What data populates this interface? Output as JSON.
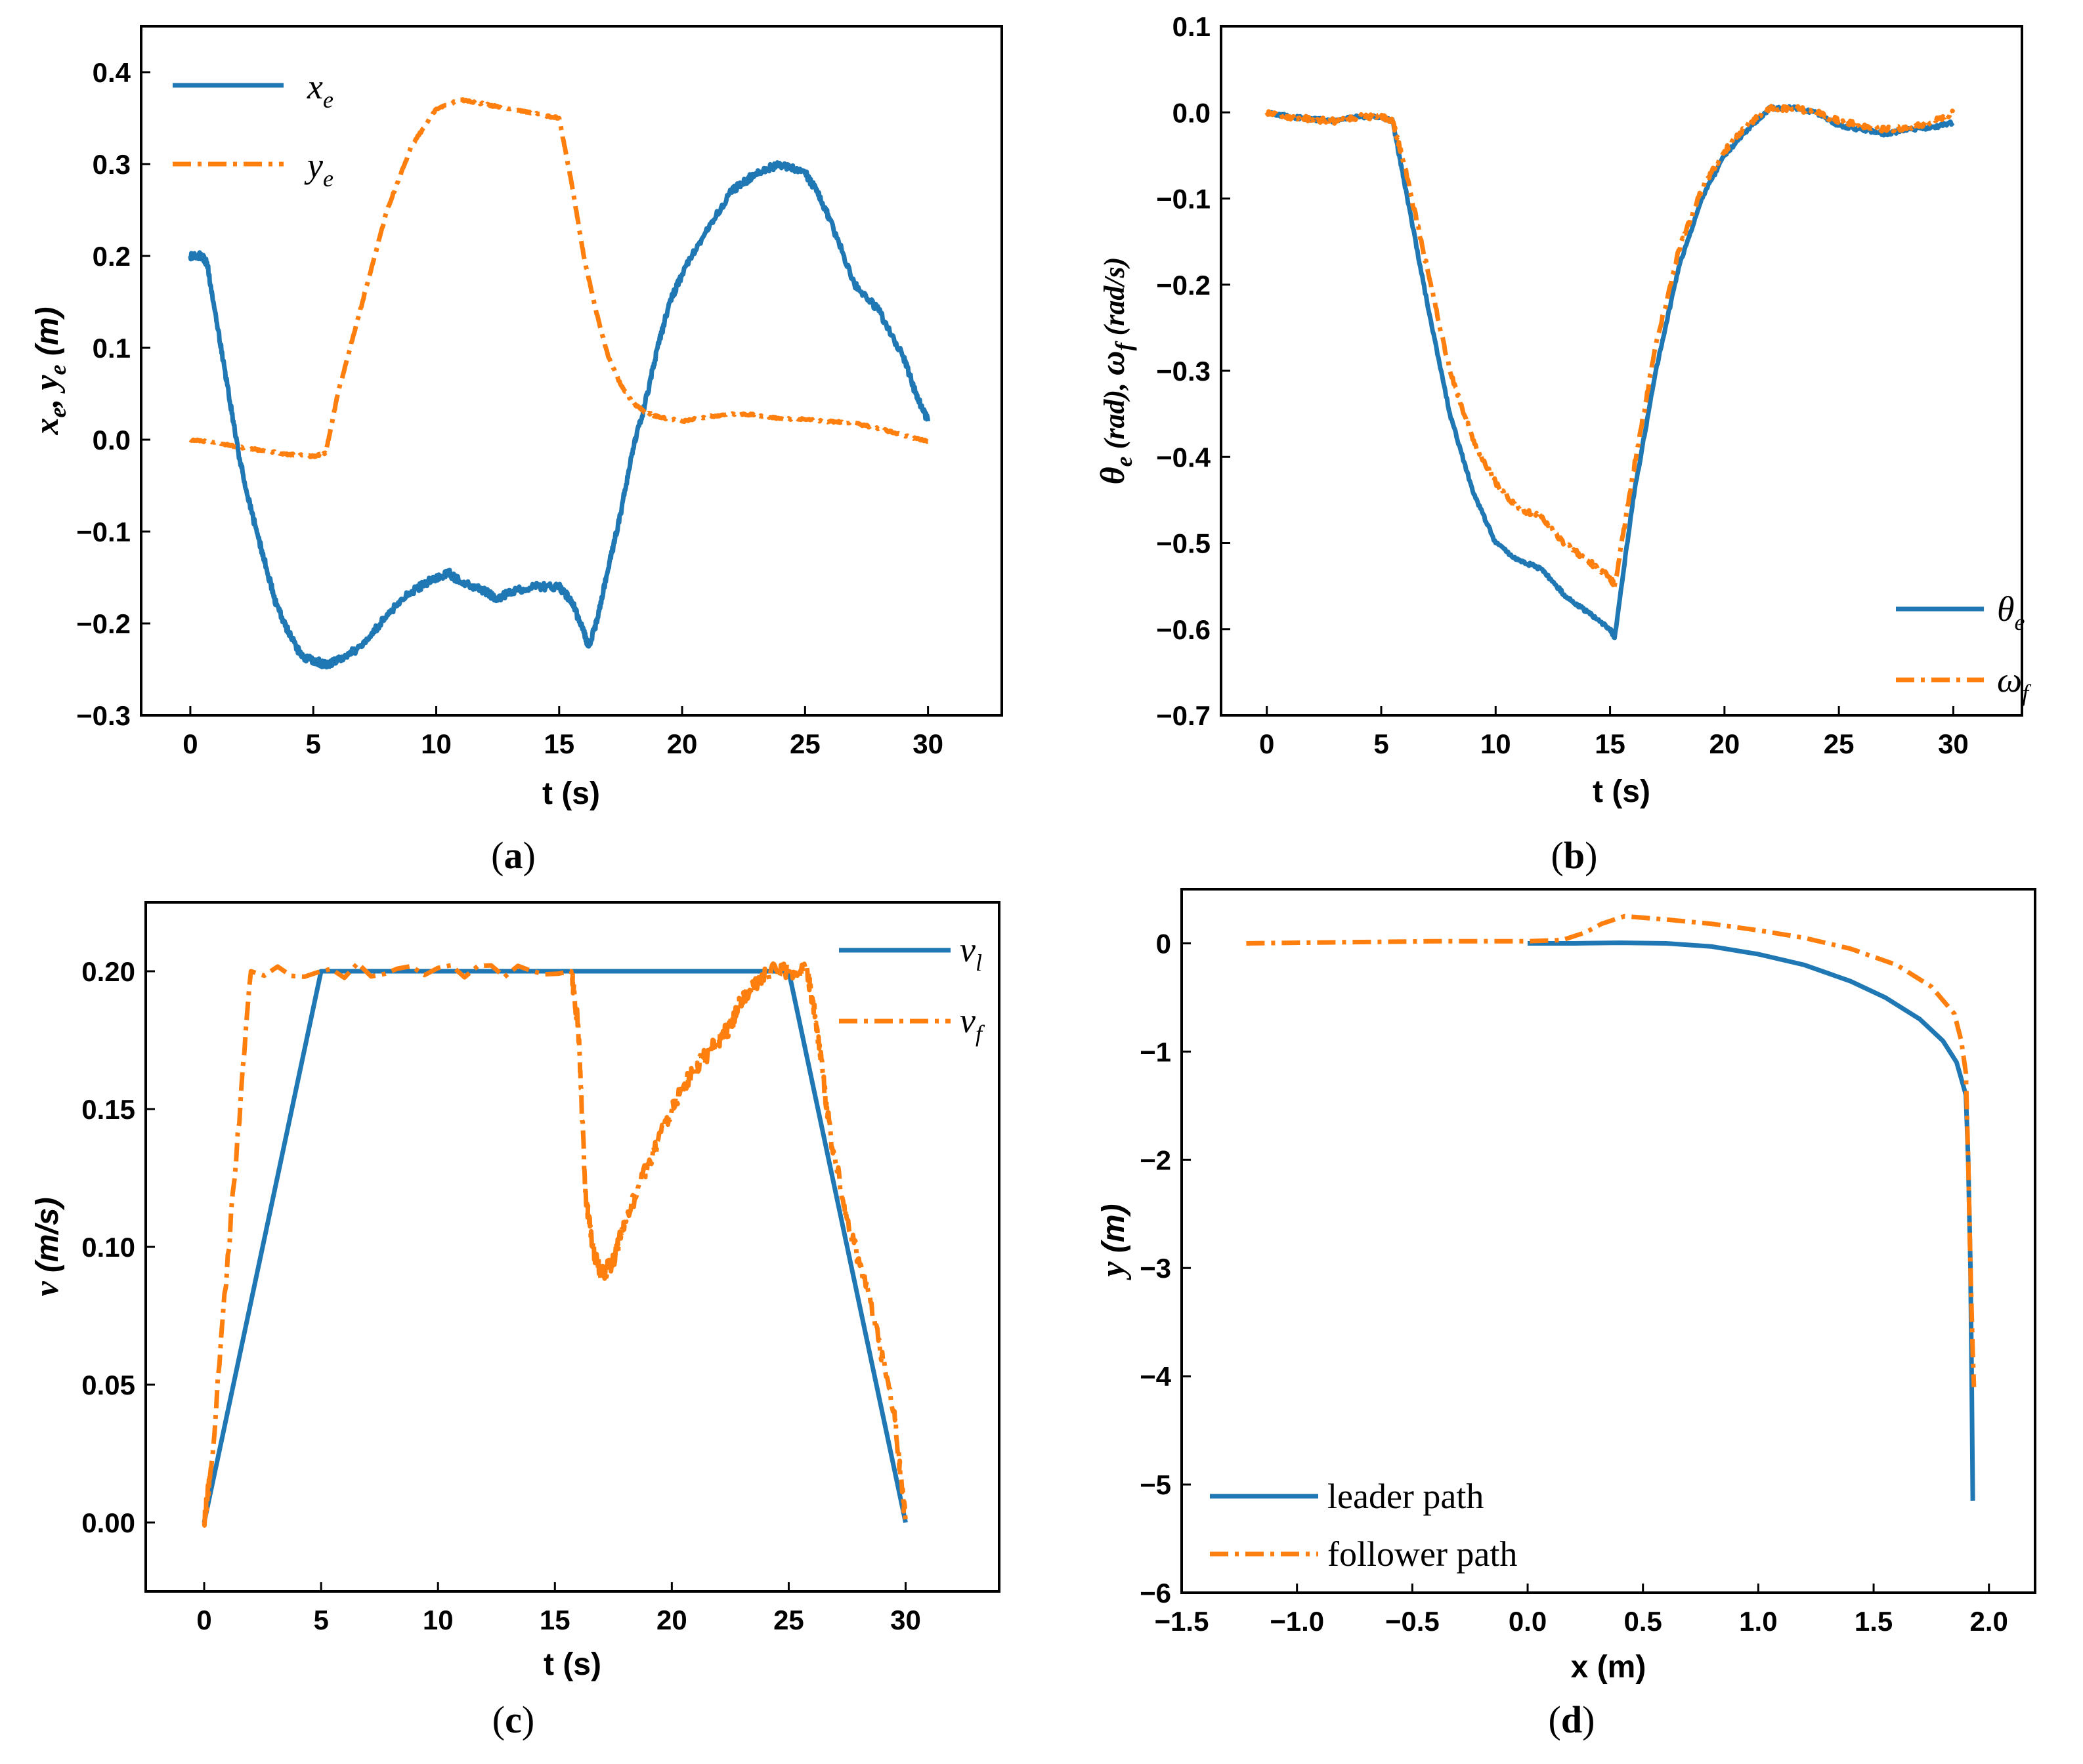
{
  "colors": {
    "blue": "#1f77b4",
    "orange": "#ff7f0e"
  },
  "chart_data": [
    {
      "id": "a",
      "type": "line",
      "panel_label": "a",
      "xlabel": "t (s)",
      "ylabel": {
        "v1": "x",
        "s1": "e",
        "sep": ", ",
        "v2": "y",
        "s2": "e",
        "unit": " (m)"
      },
      "xlim": [
        -2,
        33
      ],
      "ylim": [
        -0.3,
        0.45
      ],
      "xticks": [
        0,
        5,
        10,
        15,
        20,
        25,
        30
      ],
      "yticks": [
        -0.3,
        -0.2,
        -0.1,
        0.0,
        0.1,
        0.2,
        0.3,
        0.4
      ],
      "ytick_labels": [
        "−0.3",
        "−0.2",
        "−0.1",
        "0.0",
        "0.1",
        "0.2",
        "0.3",
        "0.4"
      ],
      "legend_position": "top-left",
      "series": [
        {
          "name": "x",
          "sub": "e",
          "color": "blue",
          "style": "solid",
          "noise": 0.004,
          "x": [
            0,
            0.5,
            0.7,
            1,
            1.5,
            2,
            2.5,
            3,
            3.5,
            4,
            4.5,
            5,
            5.5,
            6,
            7,
            8,
            9,
            10,
            10.5,
            11,
            12,
            12.5,
            13,
            14,
            15,
            15.5,
            16,
            16.2,
            16.5,
            17,
            17.5,
            18,
            18.5,
            19,
            19.5,
            20,
            21,
            22,
            22.5,
            23,
            24,
            25,
            25.5,
            26,
            27,
            28,
            29,
            29.5,
            30
          ],
          "values": [
            0.2,
            0.2,
            0.19,
            0.14,
            0.06,
            -0.02,
            -0.08,
            -0.13,
            -0.18,
            -0.21,
            -0.235,
            -0.24,
            -0.245,
            -0.24,
            -0.225,
            -0.19,
            -0.165,
            -0.15,
            -0.145,
            -0.155,
            -0.165,
            -0.175,
            -0.165,
            -0.16,
            -0.16,
            -0.175,
            -0.21,
            -0.225,
            -0.2,
            -0.14,
            -0.08,
            -0.01,
            0.04,
            0.1,
            0.15,
            0.18,
            0.23,
            0.27,
            0.28,
            0.29,
            0.3,
            0.29,
            0.27,
            0.24,
            0.17,
            0.14,
            0.09,
            0.05,
            0.02
          ]
        },
        {
          "name": "y",
          "sub": "e",
          "color": "orange",
          "style": "dashdot",
          "noise": 0.001,
          "x": [
            0,
            1,
            2,
            3,
            4,
            5,
            5.5,
            6,
            7,
            8,
            9,
            10,
            11,
            12,
            13,
            14,
            15,
            15.5,
            16,
            16.5,
            17,
            17.5,
            18,
            18.5,
            19,
            20,
            21,
            22,
            23,
            24,
            25,
            26,
            27,
            28,
            29,
            30
          ],
          "values": [
            0.0,
            -0.003,
            -0.008,
            -0.012,
            -0.016,
            -0.018,
            -0.015,
            0.05,
            0.15,
            0.25,
            0.32,
            0.36,
            0.37,
            0.365,
            0.36,
            0.355,
            0.35,
            0.28,
            0.2,
            0.14,
            0.09,
            0.06,
            0.04,
            0.03,
            0.025,
            0.02,
            0.025,
            0.028,
            0.027,
            0.023,
            0.022,
            0.02,
            0.018,
            0.012,
            0.005,
            -0.002
          ]
        }
      ]
    },
    {
      "id": "b",
      "type": "line",
      "panel_label": "b",
      "xlabel": "t (s)",
      "ylabel": {
        "v1": "θ",
        "s1": "e",
        "mid": " (rad), ",
        "v2": "ω",
        "s2": "f",
        "unit": " (rad/s)"
      },
      "xlim": [
        -2,
        33
      ],
      "ylim": [
        -0.7,
        0.1
      ],
      "xticks": [
        0,
        5,
        10,
        15,
        20,
        25,
        30
      ],
      "yticks": [
        -0.7,
        -0.6,
        -0.5,
        -0.4,
        -0.3,
        -0.2,
        -0.1,
        0.0,
        0.1
      ],
      "ytick_labels": [
        "−0.7",
        "−0.6",
        "−0.5",
        "−0.4",
        "−0.3",
        "−0.2",
        "−0.1",
        "0.0",
        "0.1"
      ],
      "legend_position": "bottom-right",
      "series": [
        {
          "name": "θ",
          "sub": "e",
          "color": "blue",
          "style": "solid",
          "noise": 0.002,
          "x": [
            0,
            1,
            2,
            3,
            4,
            5,
            5.5,
            6,
            7,
            8,
            9,
            10,
            11,
            12,
            13,
            14,
            15,
            15.2,
            16,
            17,
            18,
            19,
            20,
            21,
            22,
            23,
            24,
            25,
            26,
            27,
            28,
            29,
            30
          ],
          "values": [
            0.0,
            -0.005,
            -0.008,
            -0.01,
            -0.005,
            -0.005,
            -0.01,
            -0.08,
            -0.22,
            -0.35,
            -0.44,
            -0.5,
            -0.52,
            -0.53,
            -0.56,
            -0.58,
            -0.6,
            -0.61,
            -0.45,
            -0.3,
            -0.18,
            -0.1,
            -0.05,
            -0.02,
            0.005,
            0.005,
            0.0,
            -0.015,
            -0.02,
            -0.025,
            -0.02,
            -0.018,
            -0.012
          ]
        },
        {
          "name": "ω",
          "sub": "f",
          "color": "orange",
          "style": "dashdot",
          "noise": 0.003,
          "x": [
            0,
            1,
            2,
            3,
            4,
            5,
            5.5,
            6,
            7,
            8,
            9,
            10,
            11,
            12,
            13,
            14,
            15,
            15.2,
            16,
            17,
            18,
            19,
            20,
            21,
            22,
            23,
            24,
            25,
            26,
            27,
            28,
            29,
            30
          ],
          "values": [
            0.0,
            -0.005,
            -0.008,
            -0.01,
            -0.005,
            -0.005,
            -0.01,
            -0.06,
            -0.18,
            -0.3,
            -0.38,
            -0.43,
            -0.46,
            -0.47,
            -0.5,
            -0.52,
            -0.54,
            -0.55,
            -0.42,
            -0.27,
            -0.16,
            -0.09,
            -0.045,
            -0.015,
            0.005,
            0.005,
            0.0,
            -0.01,
            -0.015,
            -0.02,
            -0.018,
            -0.012,
            0.0
          ]
        }
      ]
    },
    {
      "id": "c",
      "type": "line",
      "panel_label": "c",
      "xlabel": "t (s)",
      "ylabel": {
        "v1": "v",
        "unit": " (m/s)"
      },
      "xlim": [
        -2.5,
        34
      ],
      "ylim": [
        -0.025,
        0.225
      ],
      "xticks": [
        0,
        5,
        10,
        15,
        20,
        25,
        30
      ],
      "yticks": [
        0.0,
        0.05,
        0.1,
        0.15,
        0.2
      ],
      "ytick_labels": [
        "0.00",
        "0.05",
        "0.10",
        "0.15",
        "0.20"
      ],
      "legend_position": "top-right",
      "series": [
        {
          "name": "v",
          "sub": "l",
          "color": "blue",
          "style": "solid",
          "noise": 0,
          "x": [
            0,
            5,
            25,
            30
          ],
          "values": [
            0.0,
            0.2,
            0.2,
            0.0
          ]
        },
        {
          "name": "v",
          "sub": "f",
          "color": "orange",
          "style": "dashdot",
          "noise": 0.003,
          "x": [
            0,
            0.3,
            2,
            15.7,
            16,
            16.3,
            16.6,
            17,
            17.5,
            18,
            19,
            20,
            21,
            22,
            22.5,
            23,
            23.5,
            24,
            25,
            25.8,
            26.2,
            26.8,
            27.5,
            28.5,
            29.5,
            30
          ],
          "values": [
            0.0,
            0.02,
            0.2,
            0.2,
            0.18,
            0.12,
            0.1,
            0.09,
            0.095,
            0.11,
            0.13,
            0.15,
            0.165,
            0.175,
            0.18,
            0.19,
            0.195,
            0.2,
            0.2,
            0.2,
            0.18,
            0.14,
            0.11,
            0.08,
            0.04,
            0.0
          ]
        }
      ]
    },
    {
      "id": "d",
      "type": "line",
      "panel_label": "d",
      "xlabel": "x (m)",
      "ylabel": {
        "v1": "y",
        "unit": " (m)"
      },
      "xlim": [
        -1.5,
        2.2
      ],
      "ylim": [
        -6,
        0.5
      ],
      "xticks": [
        -1.5,
        -1.0,
        -0.5,
        0.0,
        0.5,
        1.0,
        1.5,
        2.0
      ],
      "xtick_labels": [
        "−1.5",
        "−1.0",
        "−0.5",
        "0.0",
        "0.5",
        "1.0",
        "1.5",
        "2.0"
      ],
      "yticks": [
        -6,
        -5,
        -4,
        -3,
        -2,
        -1,
        0
      ],
      "ytick_labels": [
        "−6",
        "−5",
        "−4",
        "−3",
        "−2",
        "−1",
        "0"
      ],
      "legend_position": "bottom-left",
      "series": [
        {
          "name": "leader path",
          "color": "blue",
          "style": "solid",
          "noise": 0,
          "x": [
            0,
            0.2,
            0.4,
            0.6,
            0.8,
            1.0,
            1.2,
            1.4,
            1.55,
            1.7,
            1.8,
            1.86,
            1.9,
            1.91,
            1.92,
            1.925,
            1.93
          ],
          "values": [
            0,
            0,
            0.005,
            0.0,
            -0.03,
            -0.1,
            -0.2,
            -0.35,
            -0.5,
            -0.7,
            -0.9,
            -1.1,
            -1.4,
            -2.0,
            -3.0,
            -4.0,
            -5.15
          ]
        },
        {
          "name": "follower path",
          "color": "orange",
          "style": "dashdot",
          "noise": 0,
          "x": [
            -1.22,
            -0.8,
            -0.4,
            0.0,
            0.15,
            0.25,
            0.32,
            0.42,
            0.6,
            0.8,
            1.0,
            1.2,
            1.4,
            1.6,
            1.75,
            1.85,
            1.88,
            1.9,
            1.91,
            1.92,
            1.93,
            1.935
          ],
          "values": [
            0.0,
            0.01,
            0.02,
            0.02,
            0.03,
            0.1,
            0.18,
            0.25,
            0.22,
            0.18,
            0.12,
            0.05,
            -0.05,
            -0.2,
            -0.4,
            -0.65,
            -0.9,
            -1.2,
            -2.0,
            -3.0,
            -3.8,
            -4.1
          ]
        }
      ]
    }
  ]
}
